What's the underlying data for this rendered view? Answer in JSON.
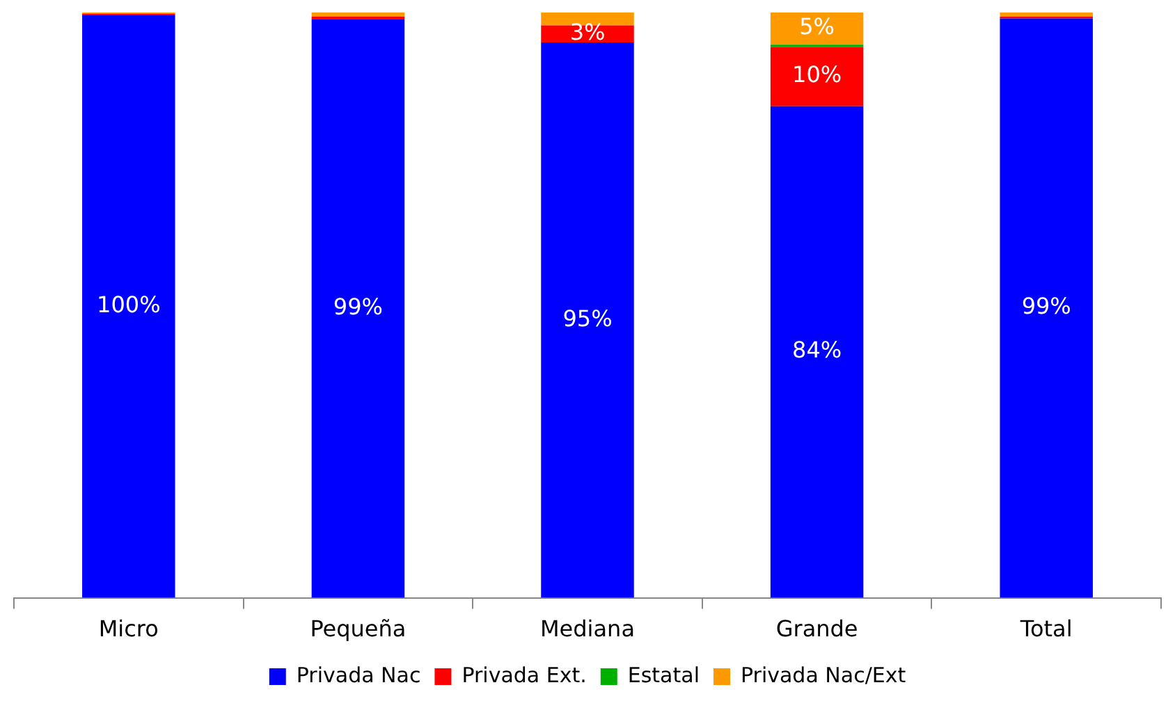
{
  "chart_data": {
    "type": "bar",
    "stacked": true,
    "categories": [
      "Micro",
      "Pequeña",
      "Mediana",
      "Grande",
      "Total"
    ],
    "series": [
      {
        "name": "Privada Nac",
        "color": "#0000ff",
        "values": [
          99.6,
          98.8,
          94.9,
          84,
          99
        ],
        "value_labels": [
          "100%",
          "99%",
          "95%",
          "84%",
          "99%"
        ]
      },
      {
        "name": "Privada Ext.",
        "color": "#ff0000",
        "values": [
          0.2,
          0.5,
          2.9,
          10.1,
          0.3
        ],
        "value_labels": [
          null,
          null,
          "3%",
          "10%",
          null
        ]
      },
      {
        "name": "Estatal",
        "color": "#00b000",
        "values": [
          0,
          0,
          0,
          0.4,
          0
        ],
        "value_labels": [
          null,
          null,
          null,
          null,
          null
        ]
      },
      {
        "name": "Privada Nac/Ext",
        "color": "#ff9900",
        "values": [
          0.2,
          0.7,
          2.2,
          5.5,
          0.7
        ],
        "value_labels": [
          null,
          null,
          null,
          "5%",
          null
        ]
      }
    ],
    "legend": "bottom",
    "grid": false
  }
}
